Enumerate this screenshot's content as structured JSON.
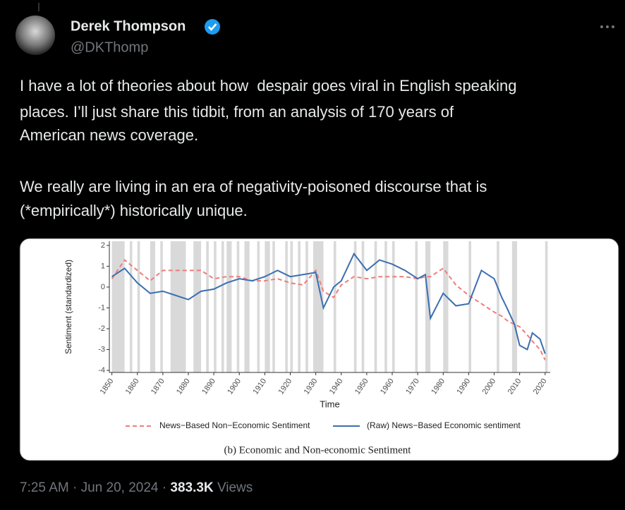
{
  "tweet": {
    "author": {
      "name": "Derek Thompson",
      "handle": "@DKThomp"
    },
    "text_lines": [
      "I have a lot of theories about how  despair goes viral in English speaking",
      "places. I’ll just share this tidbit, from an analysis of 170 years of",
      "American news coverage.",
      "We really are living in an era of negativity-poisoned discourse that is",
      "(*empirically*) historically unique."
    ],
    "footer": {
      "time": "7:25 AM",
      "separator": "·",
      "date": "Jun 20, 2024",
      "views": "383.3K",
      "views_label": "Views"
    }
  },
  "chart_data": {
    "type": "line",
    "caption": "(b) Economic and Non-economic Sentiment",
    "x_label": "Time",
    "y_label": "Sentiment (standardized)",
    "x": [
      1850,
      1855,
      1860,
      1865,
      1870,
      1875,
      1880,
      1885,
      1890,
      1895,
      1900,
      1905,
      1910,
      1915,
      1920,
      1925,
      1930,
      1933,
      1937,
      1940,
      1945,
      1950,
      1955,
      1960,
      1965,
      1970,
      1973,
      1975,
      1980,
      1985,
      1990,
      1995,
      2000,
      2003,
      2005,
      2008,
      2010,
      2013,
      2015,
      2018,
      2020
    ],
    "series": [
      {
        "name": "News−Based Non−Economic Sentiment",
        "color": "#f07c7c",
        "dashed": true,
        "values": [
          0.4,
          1.3,
          0.8,
          0.3,
          0.8,
          0.8,
          0.8,
          0.8,
          0.4,
          0.5,
          0.5,
          0.3,
          0.3,
          0.4,
          0.2,
          0.1,
          0.8,
          -0.2,
          -0.5,
          0.1,
          0.5,
          0.4,
          0.5,
          0.5,
          0.5,
          0.4,
          0.5,
          0.5,
          0.9,
          0.1,
          -0.4,
          -0.8,
          -1.2,
          -1.4,
          -1.6,
          -1.8,
          -1.9,
          -2.3,
          -2.6,
          -3.0,
          -3.5
        ]
      },
      {
        "name": "(Raw) News−Based Economic sentiment",
        "color": "#3b6fb0",
        "dashed": false,
        "values": [
          0.5,
          0.9,
          0.2,
          -0.3,
          -0.2,
          -0.4,
          -0.6,
          -0.2,
          -0.1,
          0.2,
          0.4,
          0.3,
          0.5,
          0.8,
          0.5,
          0.6,
          0.7,
          -1.0,
          0.0,
          0.3,
          1.6,
          0.8,
          1.3,
          1.1,
          0.8,
          0.4,
          0.6,
          -1.5,
          -0.3,
          -0.9,
          -0.8,
          0.8,
          0.4,
          -0.5,
          -1.0,
          -1.8,
          -2.8,
          -3.0,
          -2.2,
          -2.5,
          -3.2
        ]
      }
    ],
    "shaded_periods": [
      [
        1850,
        1855
      ],
      [
        1857,
        1858
      ],
      [
        1860,
        1861
      ],
      [
        1865,
        1867
      ],
      [
        1869,
        1870
      ],
      [
        1873,
        1879
      ],
      [
        1882,
        1885
      ],
      [
        1887,
        1888
      ],
      [
        1890,
        1891
      ],
      [
        1893,
        1894
      ],
      [
        1895,
        1897
      ],
      [
        1899,
        1900
      ],
      [
        1902,
        1904
      ],
      [
        1907,
        1908
      ],
      [
        1910,
        1912
      ],
      [
        1913,
        1914
      ],
      [
        1918,
        1919
      ],
      [
        1920,
        1921
      ],
      [
        1923,
        1924
      ],
      [
        1926,
        1927
      ],
      [
        1929,
        1933
      ],
      [
        1937,
        1938
      ],
      [
        1945,
        1946
      ],
      [
        1948,
        1949
      ],
      [
        1953,
        1954
      ],
      [
        1957,
        1958
      ],
      [
        1960,
        1961
      ],
      [
        1969,
        1970
      ],
      [
        1973,
        1975
      ],
      [
        1980,
        1981
      ],
      [
        1981,
        1982
      ],
      [
        1990,
        1991
      ],
      [
        2001,
        2002
      ],
      [
        2007,
        2009
      ],
      [
        2020,
        2021
      ]
    ],
    "xlim": [
      1849,
      2022
    ],
    "ylim": [
      -4.1,
      2.2
    ],
    "xticks": [
      1850,
      1860,
      1870,
      1880,
      1890,
      1900,
      1910,
      1920,
      1930,
      1940,
      1950,
      1960,
      1970,
      1980,
      1990,
      2000,
      2010,
      2020
    ],
    "yticks": [
      -4,
      -3,
      -2,
      -1,
      0,
      1,
      2
    ],
    "legend": "bottom"
  }
}
